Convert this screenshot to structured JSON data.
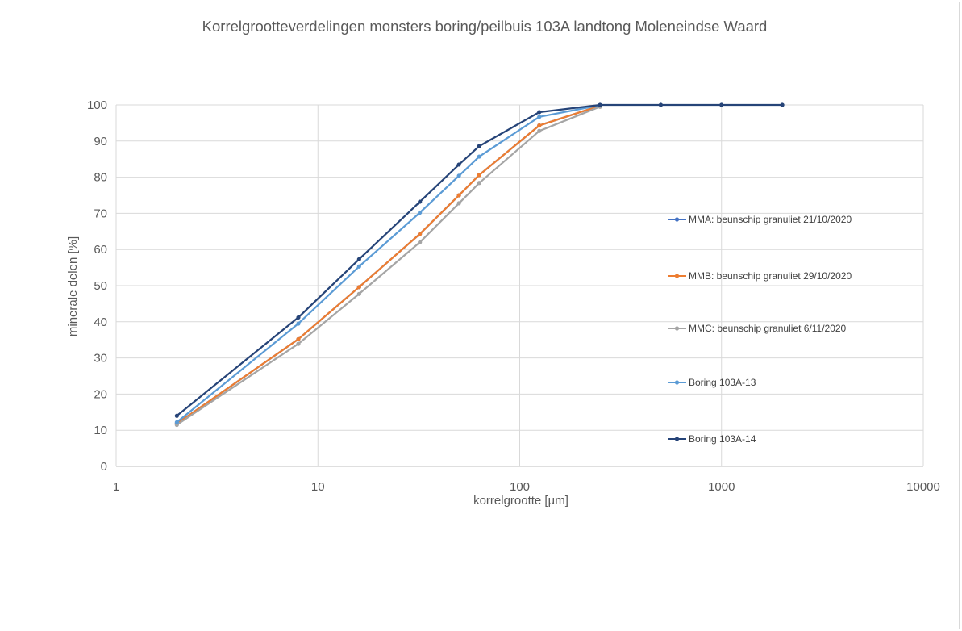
{
  "chart_data": {
    "type": "line",
    "title": "Korrelgrootteverdelingen monsters boring/peilbuis 103A landtong Moleneindse Waard",
    "xlabel": "korrelgrootte [µm]",
    "ylabel": "minerale delen [%]",
    "xscale": "log",
    "xlim": [
      1,
      10000
    ],
    "ylim": [
      0,
      100
    ],
    "x_ticks": [
      1,
      10,
      100,
      1000,
      10000
    ],
    "x_tick_labels": [
      "1",
      "10",
      "100",
      "1000",
      "10000"
    ],
    "y_ticks": [
      0,
      10,
      20,
      30,
      40,
      50,
      60,
      70,
      80,
      90,
      100
    ],
    "y_tick_labels": [
      "0",
      "10",
      "20",
      "30",
      "40",
      "50",
      "60",
      "70",
      "80",
      "90",
      "100"
    ],
    "grid": true,
    "legend_position": "right",
    "series": [
      {
        "name": "MMA: beunschip granuliet 21/10/2020",
        "color": "#4472c4",
        "points": [
          [
            2,
            11.8
          ],
          [
            8,
            35.2
          ],
          [
            16,
            49.6
          ],
          [
            32,
            64.3
          ],
          [
            50,
            75.0
          ],
          [
            63,
            80.6
          ],
          [
            125,
            94.3
          ],
          [
            250,
            99.8
          ]
        ]
      },
      {
        "name": "MMB: beunschip granuliet 29/10/2020",
        "color": "#ed7d31",
        "points": [
          [
            2,
            11.8
          ],
          [
            8,
            35.2
          ],
          [
            16,
            49.6
          ],
          [
            32,
            64.3
          ],
          [
            50,
            75.0
          ],
          [
            63,
            80.6
          ],
          [
            125,
            94.3
          ],
          [
            250,
            99.8
          ]
        ]
      },
      {
        "name": "MMC: beunschip granuliet 6/11/2020",
        "color": "#a5a5a5",
        "points": [
          [
            2,
            11.5
          ],
          [
            8,
            33.9
          ],
          [
            16,
            47.7
          ],
          [
            32,
            62.0
          ],
          [
            50,
            72.8
          ],
          [
            63,
            78.4
          ],
          [
            125,
            92.8
          ],
          [
            250,
            99.5
          ]
        ]
      },
      {
        "name": "Boring 103A-13",
        "color": "#5b9bd5",
        "points": [
          [
            2,
            12.2
          ],
          [
            8,
            39.5
          ],
          [
            16,
            55.3
          ],
          [
            32,
            70.2
          ],
          [
            50,
            80.4
          ],
          [
            63,
            85.7
          ],
          [
            125,
            96.7
          ],
          [
            250,
            99.9
          ]
        ]
      },
      {
        "name": "Boring 103A-14",
        "color": "#264478",
        "points": [
          [
            2,
            14.0
          ],
          [
            8,
            41.2
          ],
          [
            16,
            57.3
          ],
          [
            32,
            73.2
          ],
          [
            50,
            83.5
          ],
          [
            63,
            88.6
          ],
          [
            125,
            98.0
          ],
          [
            250,
            100.0
          ],
          [
            500,
            100.0
          ],
          [
            1000,
            100.0
          ],
          [
            2000,
            100.0
          ]
        ]
      }
    ]
  }
}
